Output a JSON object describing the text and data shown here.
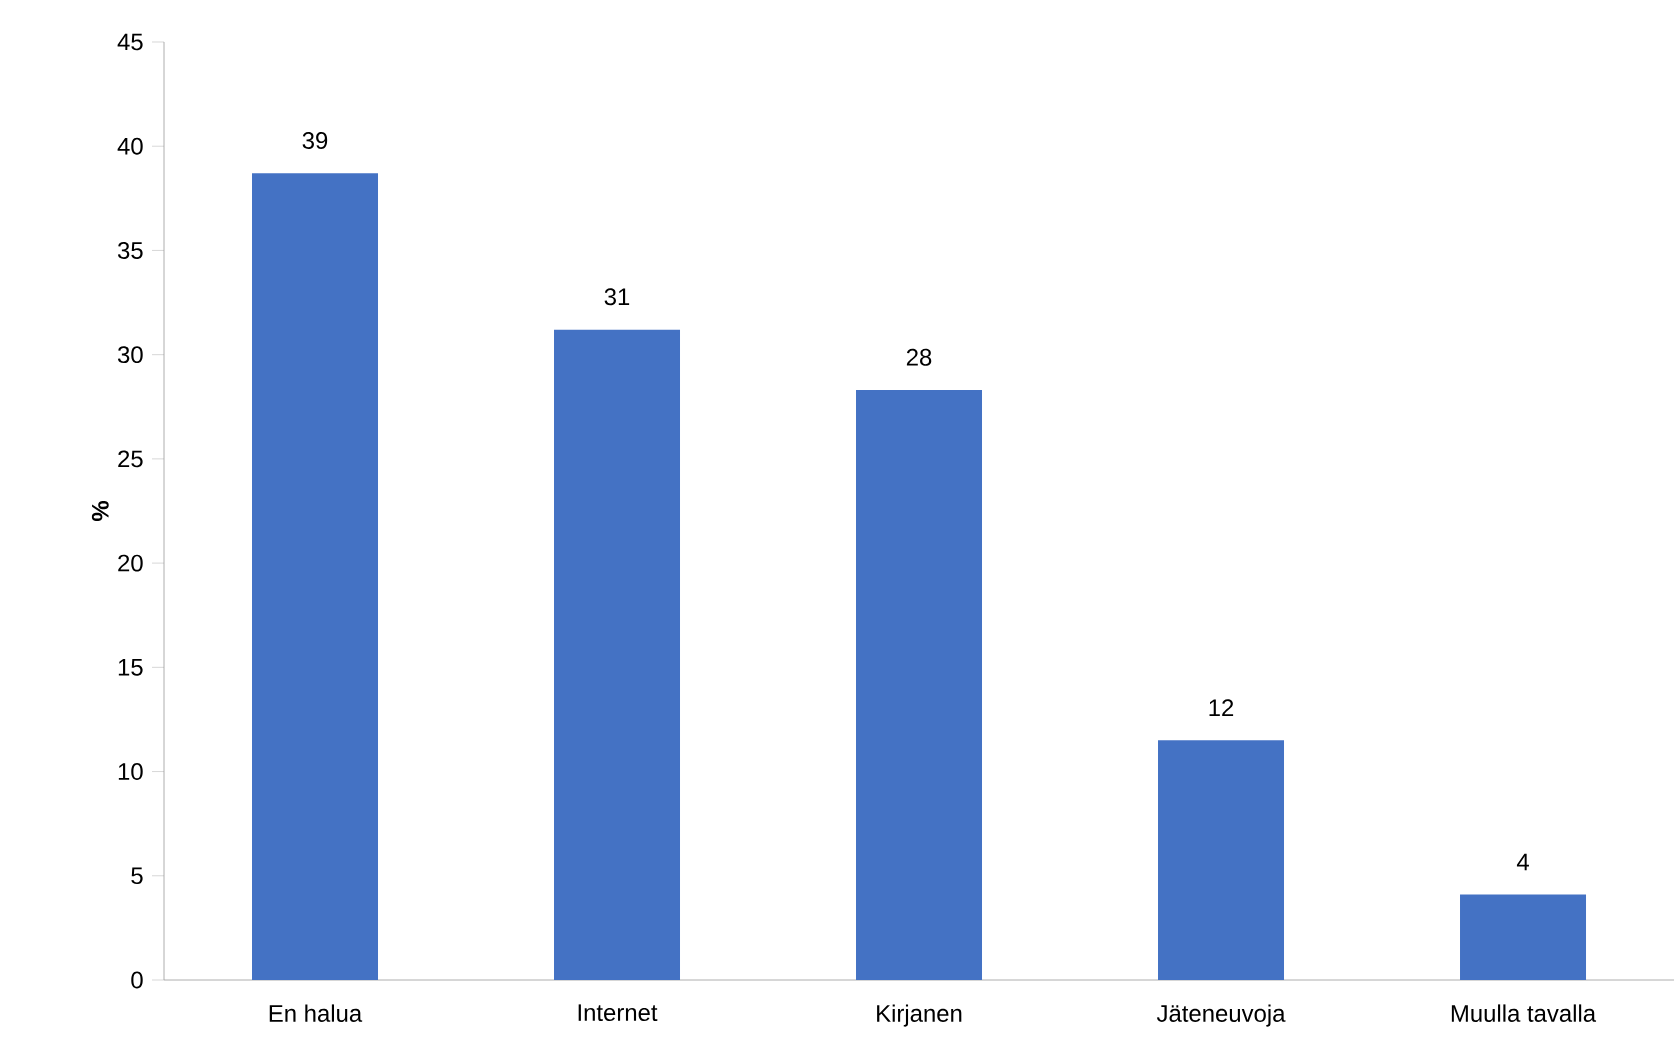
{
  "chart_data": {
    "type": "bar",
    "ylabel": "%",
    "categories": [
      "En halua",
      "Internet",
      "Kirjanen",
      "Jäteneuvoja",
      "Muulla tavalla"
    ],
    "values": [
      38.7,
      31.2,
      28.3,
      11.5,
      4.1
    ],
    "value_labels": [
      "39",
      "31",
      "28",
      "12",
      "4"
    ],
    "color": "#4472c4",
    "ylim": [
      0,
      45
    ],
    "yticks": [
      0,
      5,
      10,
      15,
      20,
      25,
      30,
      35,
      40,
      45
    ],
    "grid": false
  }
}
